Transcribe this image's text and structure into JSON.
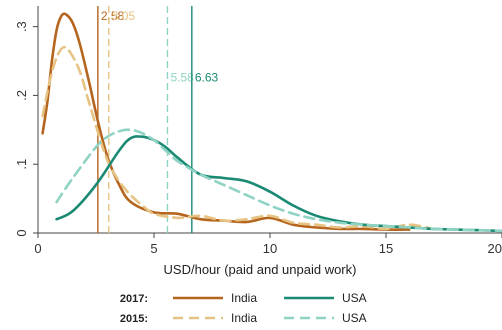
{
  "chart_data": {
    "type": "line",
    "xlabel": "USD/hour (paid and unpaid work)",
    "ylabel": "",
    "xlim": [
      0,
      20
    ],
    "ylim": [
      0,
      0.33
    ],
    "x_ticks": [
      {
        "value": 0,
        "label": "0"
      },
      {
        "value": 5,
        "label": "5"
      },
      {
        "value": 10,
        "label": "10"
      },
      {
        "value": 15,
        "label": "15"
      },
      {
        "value": 20,
        "label": "20"
      }
    ],
    "y_ticks": [
      {
        "value": 0,
        "label": "0"
      },
      {
        "value": 0.1,
        "label": ".1"
      },
      {
        "value": 0.2,
        "label": ".2"
      },
      {
        "value": 0.3,
        "label": ".3"
      }
    ],
    "grid": false,
    "legend_position": "bottom",
    "legend_rows": [
      {
        "year": "2017:",
        "dash": false
      },
      {
        "year": "2015:",
        "dash": true
      }
    ],
    "series": [
      {
        "name": "India",
        "year": "2017",
        "color": "#b5651d",
        "dash": false,
        "points": [
          [
            0.2,
            0.145
          ],
          [
            0.4,
            0.19
          ],
          [
            0.6,
            0.25
          ],
          [
            0.8,
            0.295
          ],
          [
            1.0,
            0.315
          ],
          [
            1.2,
            0.318
          ],
          [
            1.5,
            0.305
          ],
          [
            1.8,
            0.275
          ],
          [
            2.2,
            0.22
          ],
          [
            2.6,
            0.16
          ],
          [
            3.0,
            0.11
          ],
          [
            3.5,
            0.07
          ],
          [
            4.0,
            0.045
          ],
          [
            5.0,
            0.03
          ],
          [
            6.0,
            0.028
          ],
          [
            7.0,
            0.02
          ],
          [
            8.0,
            0.018
          ],
          [
            9.0,
            0.016
          ],
          [
            10.0,
            0.022
          ],
          [
            11.0,
            0.012
          ],
          [
            12.0,
            0.008
          ],
          [
            13.0,
            0.006
          ],
          [
            14.0,
            0.006
          ],
          [
            15.0,
            0.005
          ],
          [
            16.0,
            0.005
          ]
        ]
      },
      {
        "name": "India",
        "year": "2015",
        "color": "#e6c383",
        "dash": true,
        "points": [
          [
            0.2,
            0.17
          ],
          [
            0.5,
            0.22
          ],
          [
            0.8,
            0.255
          ],
          [
            1.1,
            0.27
          ],
          [
            1.4,
            0.262
          ],
          [
            1.8,
            0.235
          ],
          [
            2.2,
            0.19
          ],
          [
            2.6,
            0.145
          ],
          [
            3.0,
            0.105
          ],
          [
            3.5,
            0.075
          ],
          [
            4.0,
            0.055
          ],
          [
            4.5,
            0.04
          ],
          [
            5.0,
            0.028
          ],
          [
            6.0,
            0.022
          ],
          [
            7.0,
            0.025
          ],
          [
            8.0,
            0.018
          ],
          [
            9.0,
            0.02
          ],
          [
            10.0,
            0.025
          ],
          [
            11.0,
            0.015
          ],
          [
            12.0,
            0.012
          ],
          [
            13.0,
            0.008
          ],
          [
            14.0,
            0.01
          ],
          [
            15.0,
            0.006
          ],
          [
            16.0,
            0.012
          ],
          [
            17.0,
            0.006
          ]
        ]
      },
      {
        "name": "USA",
        "year": "2017",
        "color": "#1a8a73",
        "dash": false,
        "points": [
          [
            0.8,
            0.02
          ],
          [
            1.5,
            0.032
          ],
          [
            2.5,
            0.07
          ],
          [
            3.5,
            0.12
          ],
          [
            4.0,
            0.138
          ],
          [
            4.5,
            0.14
          ],
          [
            5.0,
            0.135
          ],
          [
            5.5,
            0.125
          ],
          [
            6.0,
            0.11
          ],
          [
            7.0,
            0.085
          ],
          [
            8.0,
            0.08
          ],
          [
            9.0,
            0.075
          ],
          [
            10.0,
            0.06
          ],
          [
            11.0,
            0.04
          ],
          [
            12.0,
            0.025
          ],
          [
            13.0,
            0.017
          ],
          [
            14.0,
            0.012
          ],
          [
            15.0,
            0.01
          ],
          [
            16.0,
            0.008
          ],
          [
            17.0,
            0.006
          ],
          [
            18.0,
            0.005
          ],
          [
            19.0,
            0.004
          ],
          [
            20.0,
            0.003
          ]
        ]
      },
      {
        "name": "USA",
        "year": "2015",
        "color": "#8fd3c4",
        "dash": true,
        "points": [
          [
            0.8,
            0.045
          ],
          [
            1.5,
            0.08
          ],
          [
            2.5,
            0.125
          ],
          [
            3.0,
            0.14
          ],
          [
            3.5,
            0.148
          ],
          [
            4.0,
            0.15
          ],
          [
            4.5,
            0.145
          ],
          [
            5.0,
            0.135
          ],
          [
            5.5,
            0.12
          ],
          [
            6.0,
            0.105
          ],
          [
            7.0,
            0.085
          ],
          [
            8.0,
            0.07
          ],
          [
            9.0,
            0.055
          ],
          [
            10.0,
            0.04
          ],
          [
            11.0,
            0.028
          ],
          [
            12.0,
            0.02
          ],
          [
            13.0,
            0.015
          ],
          [
            14.0,
            0.012
          ],
          [
            15.0,
            0.01
          ],
          [
            16.0,
            0.008
          ],
          [
            17.0,
            0.006
          ],
          [
            18.0,
            0.005
          ],
          [
            19.0,
            0.004
          ],
          [
            20.0,
            0.003
          ]
        ]
      }
    ],
    "vlines": [
      {
        "value": 2.58,
        "label": "2.58",
        "color": "#b5651d",
        "dash": false
      },
      {
        "value": 3.05,
        "label": "3.05",
        "color": "#e6c383",
        "dash": true
      },
      {
        "value": 5.58,
        "label": "5.58",
        "color": "#8fd3c4",
        "dash": true
      },
      {
        "value": 6.63,
        "label": "6.63",
        "color": "#1a8a73",
        "dash": false
      }
    ],
    "vline_label_levels": [
      0.31,
      0.31,
      0.22,
      0.22
    ]
  }
}
